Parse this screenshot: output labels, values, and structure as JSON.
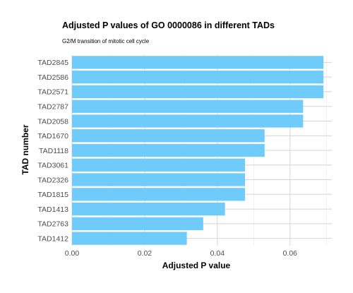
{
  "chart_data": {
    "type": "bar",
    "orientation": "horizontal",
    "title": "Adjusted P values of GO 0000086 in different TADs",
    "subtitle": "G2/M transition of mitotic cell cycle",
    "xlabel": "Adjusted P value",
    "ylabel": "TAD number",
    "categories": [
      "TAD2845",
      "TAD2586",
      "TAD2571",
      "TAD2787",
      "TAD2058",
      "TAD1670",
      "TAD1118",
      "TAD3061",
      "TAD2326",
      "TAD1815",
      "TAD1413",
      "TAD2763",
      "TAD1412"
    ],
    "values": [
      0.0692,
      0.0692,
      0.0692,
      0.0636,
      0.0636,
      0.053,
      0.053,
      0.0476,
      0.0476,
      0.0476,
      0.0421,
      0.0361,
      0.0316
    ],
    "xlim": [
      0,
      0.0715
    ],
    "xticks": [
      0.0,
      0.02,
      0.04,
      0.06
    ],
    "xtick_labels": [
      "0.00",
      "0.02",
      "0.04",
      "0.06"
    ],
    "grid": true,
    "legend": "none",
    "colors": {
      "bar": "#6ecbfa",
      "grid_major": "#d4d4d4",
      "grid_minor": "#ececec",
      "tick_text": "#4d4d4d",
      "title_text": "#000000"
    }
  }
}
